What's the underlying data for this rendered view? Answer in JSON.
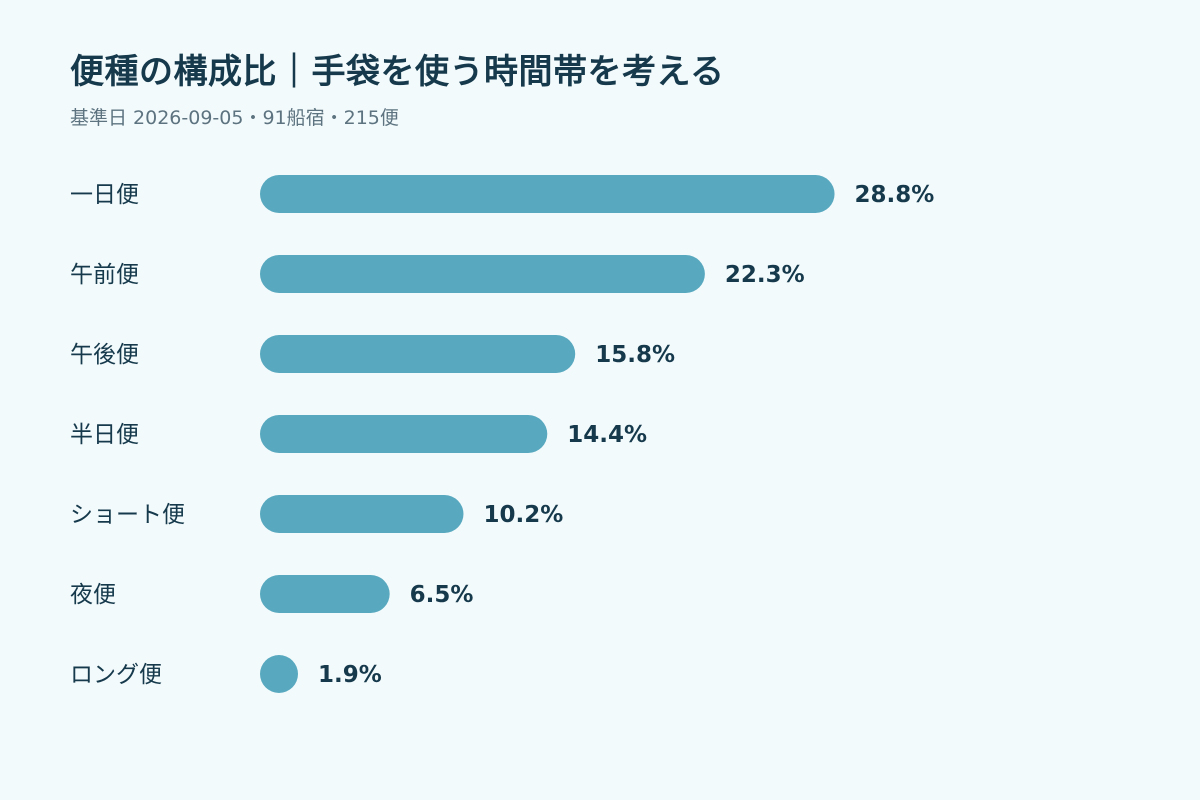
{
  "title": "便種の構成比｜手袋を使う時間帯を考える",
  "subtitle": "基準日 2026-09-05・91船宿・215便",
  "colors": {
    "bar": "#58a9bf",
    "background": "#f3fafc",
    "text": "#163a4c",
    "subtext": "#5d7480"
  },
  "chart_data": {
    "type": "bar",
    "orientation": "horizontal",
    "categories": [
      "一日便",
      "午前便",
      "午後便",
      "半日便",
      "ショート便",
      "夜便",
      "ロング便"
    ],
    "values": [
      28.8,
      22.3,
      15.8,
      14.4,
      10.2,
      6.5,
      1.9
    ],
    "value_labels": [
      "28.8%",
      "22.3%",
      "15.8%",
      "14.4%",
      "10.2%",
      "6.5%",
      "1.9%"
    ],
    "unit": "%",
    "grid": false,
    "legend": "none"
  }
}
